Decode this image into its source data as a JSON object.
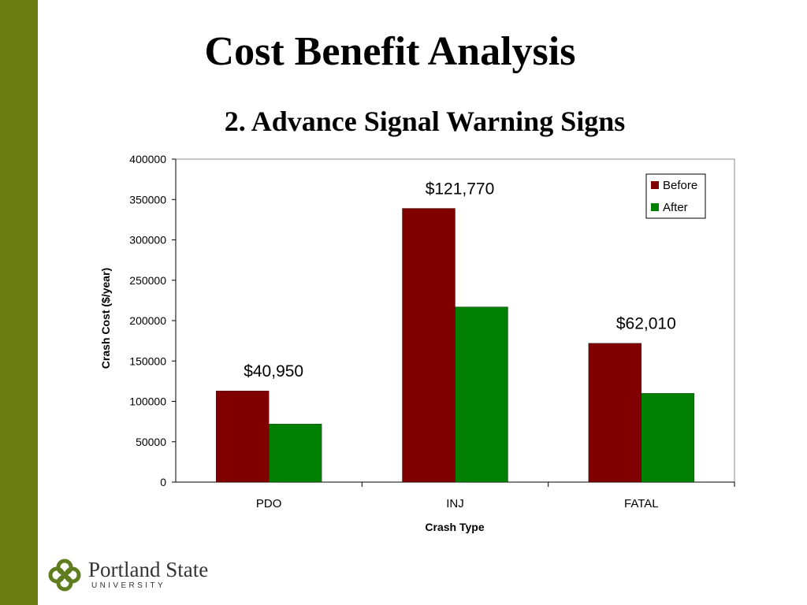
{
  "slide": {
    "title": "Cost Benefit Analysis",
    "subtitle": "2.  Advance Signal Warning Signs",
    "sidebar_color": "#6b7d12"
  },
  "logo": {
    "name": "Portland State",
    "sub": "UNIVERSITY",
    "color": "#5f7d1e"
  },
  "chart_data": {
    "type": "bar",
    "categories": [
      "PDO",
      "INJ",
      "FATAL"
    ],
    "series": [
      {
        "name": "Before",
        "color": "#800000",
        "values": [
          113000,
          339000,
          172000
        ]
      },
      {
        "name": "After",
        "color": "#008000",
        "values": [
          72000,
          217000,
          110000
        ]
      }
    ],
    "annotations": [
      "$40,950",
      "$121,770",
      "$62,010"
    ],
    "xlabel": "Crash Type",
    "ylabel": "Crash Cost ($/year)",
    "ylim": [
      0,
      400000
    ],
    "yticks": [
      "0",
      "50000",
      "100000",
      "150000",
      "200000",
      "250000",
      "300000",
      "350000",
      "400000"
    ],
    "grid": false,
    "legend_position": "top-right"
  }
}
